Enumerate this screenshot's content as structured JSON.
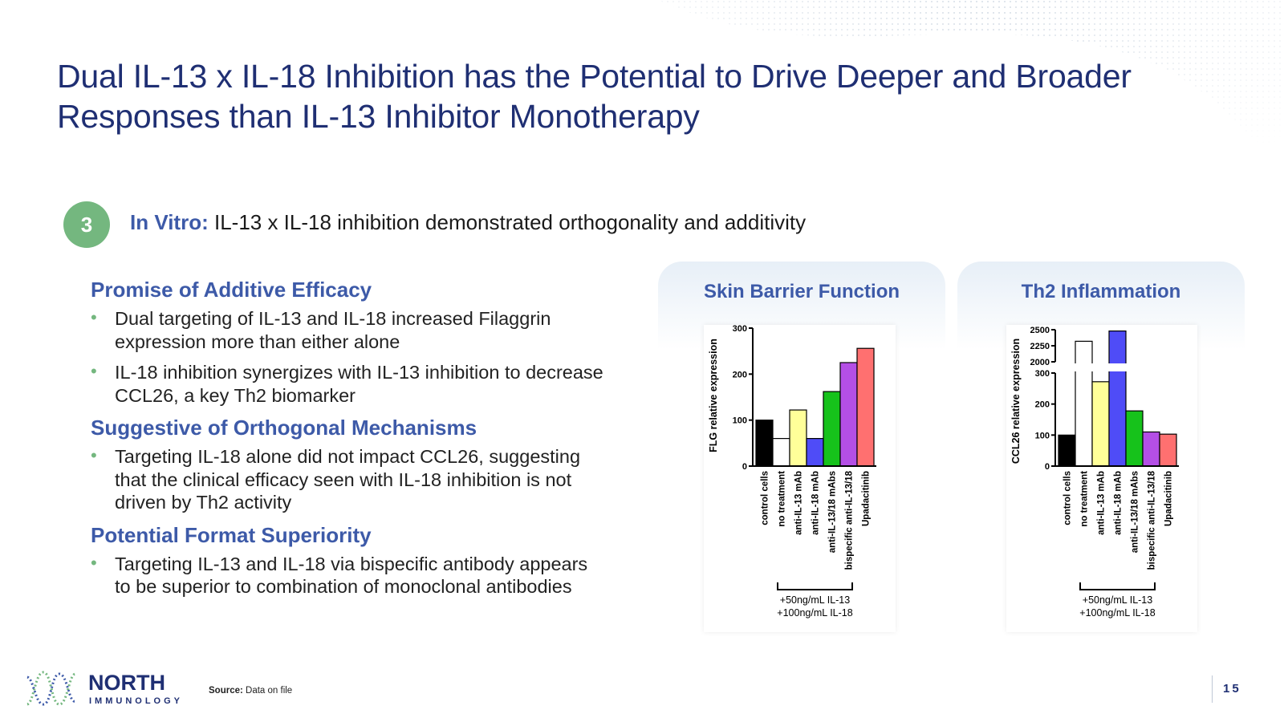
{
  "title": "Dual IL-13 x IL-18 Inhibition has the Potential to Drive Deeper and Broader Responses than IL-13 Inhibitor Monotherapy",
  "badge": "3",
  "subheading": {
    "lead": "In Vitro:",
    "text": " IL-13 x IL-18 inhibition demonstrated orthogonality and additivity"
  },
  "sections": [
    {
      "title": "Promise of Additive Efficacy",
      "bullets": [
        "Dual targeting of IL-13 and IL-18 increased Filaggrin expression more than either alone",
        "IL-18 inhibition synergizes with IL-13 inhibition to decrease CCL26, a key Th2 biomarker"
      ]
    },
    {
      "title": "Suggestive of Orthogonal Mechanisms",
      "bullets": [
        "Targeting IL-18 alone did not impact CCL26, suggesting that the clinical efficacy seen with IL-18 inhibition is not driven by Th2 activity"
      ]
    },
    {
      "title": "Potential Format Superiority",
      "bullets": [
        "Targeting IL-13 and IL-18 via bispecific antibody appears to be superior to combination of monoclonal antibodies"
      ]
    }
  ],
  "panels": [
    "Skin Barrier Function",
    "Th2 Inflammation"
  ],
  "chart_data": [
    {
      "type": "bar",
      "title": "Skin Barrier Function",
      "ylabel": "FLG relative expression",
      "ylim": [
        0,
        300
      ],
      "yticks": [
        0,
        100,
        200,
        300
      ],
      "categories": [
        "control cells",
        "no treatment",
        "anti-IL-13 mAb",
        "anti-IL-18 mAb",
        "anti-IL-13/18 mAbs",
        "bispecific anti-IL-13/18",
        "Upadacitinib"
      ],
      "values": [
        100,
        60,
        122,
        60,
        162,
        225,
        256
      ],
      "colors": [
        "#000000",
        "#ffffff",
        "#ffff99",
        "#4f4cf7",
        "#16c21b",
        "#b44fe6",
        "#ff7070"
      ],
      "bracket_label": [
        "+50ng/mL IL-13",
        "+100ng/mL IL-18"
      ]
    },
    {
      "type": "bar",
      "title": "Th2 Inflammation",
      "ylabel": "CCL26 relative expression",
      "axis_break": true,
      "ylim_lower": [
        0,
        300
      ],
      "ylim_upper": [
        2000,
        2500
      ],
      "yticks": [
        0,
        100,
        200,
        300,
        2000,
        2250,
        2500
      ],
      "categories": [
        "control cells",
        "no treatment",
        "anti-IL-13 mAb",
        "anti-IL-18 mAb",
        "anti-IL-13/18 mAbs",
        "bispecific anti-IL-13/18",
        "Upadacitinib"
      ],
      "values": [
        100,
        2320,
        272,
        2480,
        178,
        110,
        103
      ],
      "colors": [
        "#000000",
        "#ffffff",
        "#ffff99",
        "#4f4cf7",
        "#16c21b",
        "#b44fe6",
        "#ff7070"
      ],
      "bracket_label": [
        "+50ng/mL IL-13",
        "+100ng/mL IL-18"
      ]
    }
  ],
  "logo": {
    "name": "NORTH",
    "sub": "IMMUNOLOGY"
  },
  "source": {
    "label": "Source:",
    "text": " Data on file"
  },
  "page_number": "15"
}
